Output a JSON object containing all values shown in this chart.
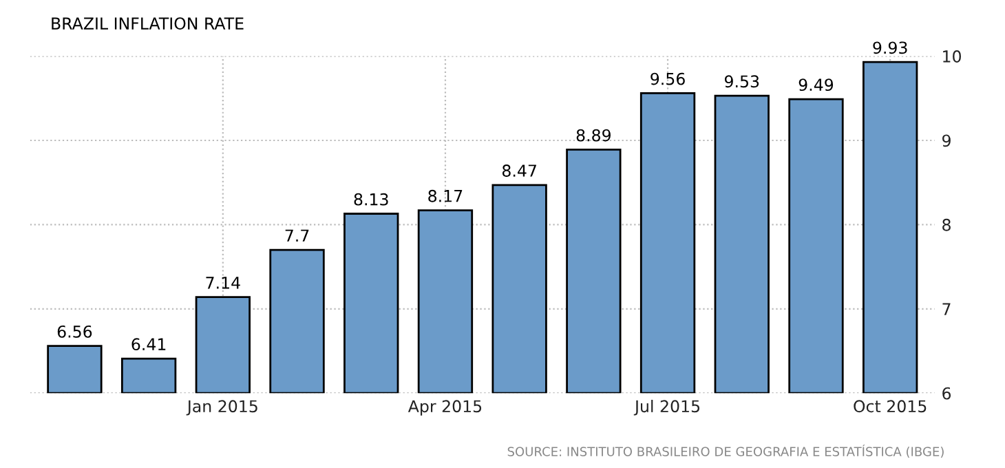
{
  "chart_data": {
    "type": "bar",
    "title": "BRAZIL INFLATION RATE",
    "categories": [
      null,
      null,
      "Jan 2015",
      null,
      null,
      "Apr 2015",
      null,
      null,
      "Jul 2015",
      null,
      null,
      "Oct 2015"
    ],
    "values": [
      6.56,
      6.41,
      7.14,
      7.7,
      8.13,
      8.17,
      8.47,
      8.89,
      9.56,
      9.53,
      9.49,
      9.93
    ],
    "color": "#6b9bc9",
    "ylim": [
      6,
      10
    ],
    "yticks": [
      6,
      7,
      8,
      9,
      10
    ],
    "grid": true,
    "data_labels": true,
    "annotations": [
      "SOURCE: INSTITUTO BRASILEIRO DE GEOGRAFIA E ESTATÍSTICA (IBGE)"
    ]
  }
}
